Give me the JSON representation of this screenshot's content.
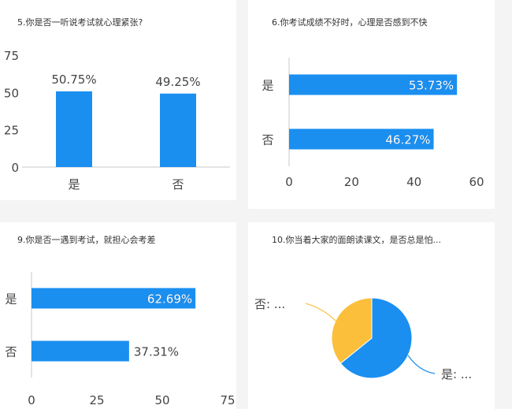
{
  "colors": {
    "bar": "#1a8ff0",
    "pie_primary": "#1a8ff0",
    "pie_secondary": "#fbbf3c",
    "axis": "#c8c8c8",
    "text": "#444444"
  },
  "charts": [
    {
      "title": "5.你是否一听说考试就心理紧张?"
    },
    {
      "title": "6.你考试成绩不好时，心理是否感到不快"
    },
    {
      "title": "9.你是否一遇到考试，就担心会考差"
    },
    {
      "title": "10.你当着大家的面朗读课文，是否总是怕..."
    }
  ],
  "chart_data": [
    {
      "type": "bar",
      "orientation": "vertical",
      "categories": [
        "是",
        "否"
      ],
      "values": [
        50.75,
        49.25
      ],
      "data_labels": [
        "50.75%",
        "49.25%"
      ],
      "ylim": [
        0,
        75
      ],
      "yticks": [
        0,
        25,
        50,
        75
      ],
      "grid": false
    },
    {
      "type": "bar",
      "orientation": "horizontal",
      "categories": [
        "是",
        "否"
      ],
      "values": [
        53.73,
        46.27
      ],
      "data_labels": [
        "53.73%",
        "46.27%"
      ],
      "xlim": [
        0,
        60
      ],
      "xticks": [
        0,
        20,
        40,
        60
      ],
      "grid": false
    },
    {
      "type": "bar",
      "orientation": "horizontal",
      "categories": [
        "是",
        "否"
      ],
      "values": [
        62.69,
        37.31
      ],
      "data_labels": [
        "62.69%",
        "37.31%"
      ],
      "xlim": [
        0,
        75
      ],
      "xticks": [
        0,
        25,
        50,
        75
      ],
      "grid": false
    },
    {
      "type": "pie",
      "categories": [
        "是",
        "否"
      ],
      "values": [
        64.18,
        35.82
      ],
      "slice_labels": [
        "是: ...",
        "否: ..."
      ]
    }
  ]
}
